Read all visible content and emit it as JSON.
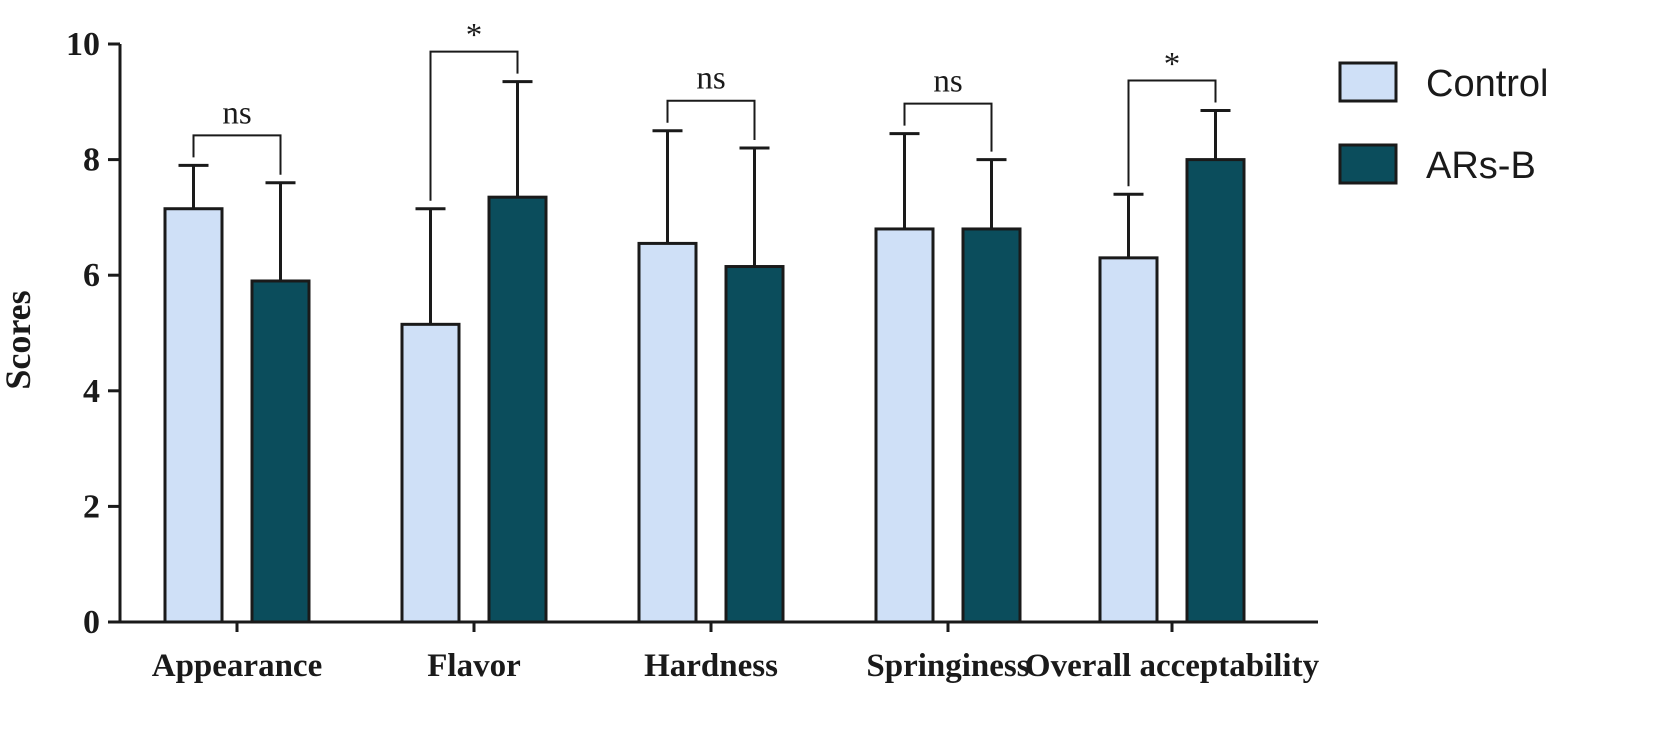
{
  "chart_data": {
    "type": "bar",
    "ylabel": "Scores",
    "xlabel": "",
    "ylim": [
      0,
      10
    ],
    "yticks": [
      0,
      2,
      4,
      6,
      8,
      10
    ],
    "categories": [
      "Appearance",
      "Flavor",
      "Hardness",
      "Springiness",
      "Overall acceptability"
    ],
    "series": [
      {
        "name": "Control",
        "color": "#cfe0f7",
        "values": [
          7.15,
          5.15,
          6.55,
          6.8,
          6.3
        ],
        "error": [
          0.75,
          2.0,
          1.95,
          1.65,
          1.1
        ]
      },
      {
        "name": "ARs-B",
        "color": "#0b4d5c",
        "values": [
          5.9,
          7.35,
          6.15,
          6.8,
          8.0
        ],
        "error": [
          1.7,
          2.0,
          2.05,
          1.2,
          0.85
        ]
      }
    ],
    "significance": [
      "ns",
      "*",
      "ns",
      "ns",
      "*"
    ],
    "legend": {
      "position": "top-right",
      "entries": [
        "Control",
        "ARs-B"
      ]
    },
    "grid": false
  }
}
